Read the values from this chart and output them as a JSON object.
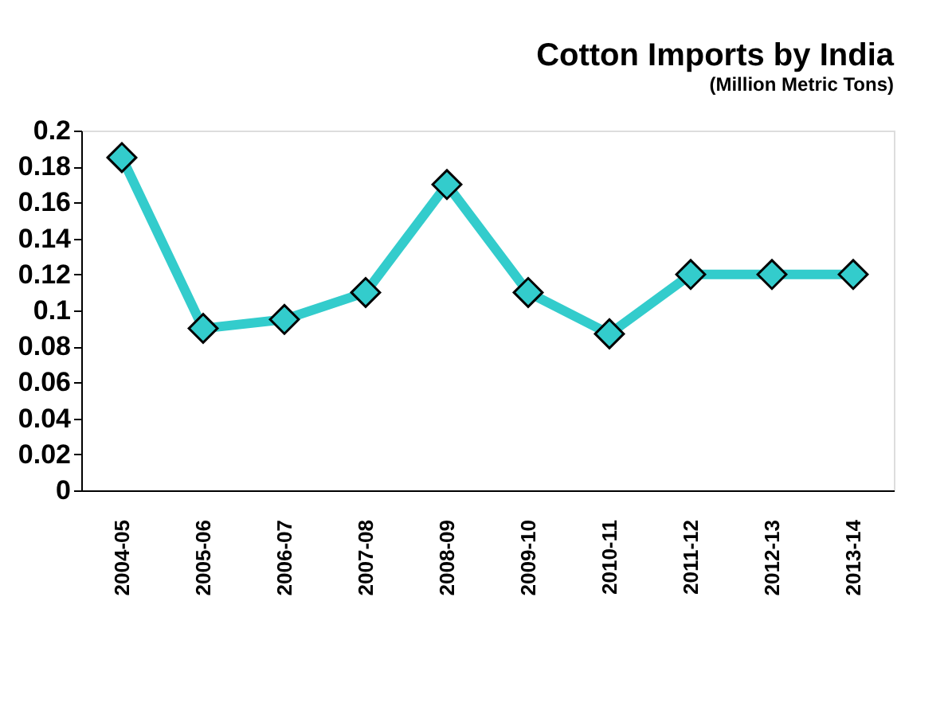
{
  "chart_data": {
    "type": "line",
    "title": "Cotton Imports by India",
    "subtitle": "(Million Metric Tons)",
    "categories": [
      "2004-05",
      "2005-06",
      "2006-07",
      "2007-08",
      "2008-09",
      "2009-10",
      "2010-11",
      "2011-12",
      "2012-13",
      "2013-14"
    ],
    "series": [
      {
        "color": "#33cccc",
        "values": [
          0.185,
          0.09,
          0.095,
          0.11,
          0.17,
          0.11,
          0.087,
          0.12,
          0.12,
          0.12
        ]
      }
    ],
    "ylim": [
      0,
      0.2
    ],
    "yticks": [
      0,
      0.02,
      0.04,
      0.06,
      0.08,
      0.1,
      0.12,
      0.14,
      0.16,
      0.18,
      0.2
    ],
    "marker": "diamond",
    "line_style": "solid",
    "grid": false,
    "legend": false
  }
}
